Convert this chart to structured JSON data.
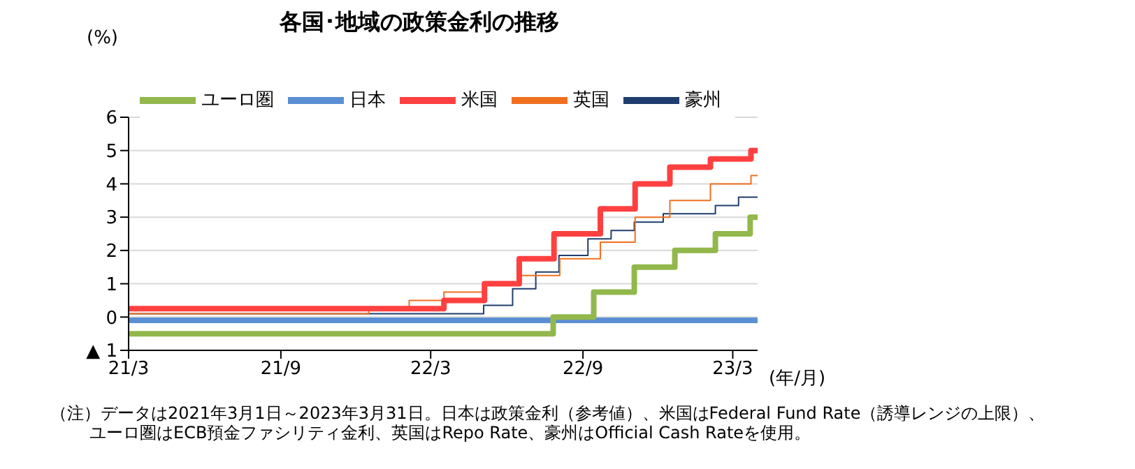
{
  "chart_data": {
    "type": "step",
    "title": "各国･地域の政策金利の推移",
    "ylabel": "(%)",
    "xlabel": "(年/月)",
    "xlim": [
      "2021-03-01",
      "2023-03-31"
    ],
    "xticks": [
      {
        "value": "2021-03-01",
        "label": "21/3"
      },
      {
        "value": "2021-09-01",
        "label": "21/9"
      },
      {
        "value": "2022-03-01",
        "label": "22/3"
      },
      {
        "value": "2022-09-01",
        "label": "22/9"
      },
      {
        "value": "2023-03-01",
        "label": "23/3"
      }
    ],
    "ylim": [
      -1,
      6
    ],
    "yticks": [
      {
        "value": -1,
        "label": "▲ 1"
      },
      0,
      1,
      2,
      3,
      4,
      5,
      6
    ],
    "grid": "y",
    "legend": "top left",
    "series": [
      {
        "name": "豪州",
        "color": "#1f3d6e",
        "x": [
          "2021-03-01",
          "2022-05-04",
          "2022-06-08",
          "2022-07-06",
          "2022-08-03",
          "2022-09-07",
          "2022-10-05",
          "2022-11-02",
          "2022-12-07",
          "2023-02-08",
          "2023-03-08",
          "2023-03-31"
        ],
        "values": [
          0.1,
          0.35,
          0.85,
          1.35,
          1.85,
          2.35,
          2.6,
          2.85,
          3.1,
          3.35,
          3.6,
          3.6
        ]
      },
      {
        "name": "英国",
        "color": "#f07020",
        "x": [
          "2021-03-01",
          "2021-12-16",
          "2022-02-03",
          "2022-03-17",
          "2022-05-05",
          "2022-06-16",
          "2022-08-04",
          "2022-09-22",
          "2022-11-03",
          "2022-12-15",
          "2023-02-02",
          "2023-03-23",
          "2023-03-31"
        ],
        "values": [
          0.1,
          0.25,
          0.5,
          0.75,
          1.0,
          1.25,
          1.75,
          2.25,
          3.0,
          3.5,
          4.0,
          4.25,
          4.25
        ]
      },
      {
        "name": "米国",
        "color": "#ff4040",
        "x": [
          "2021-03-01",
          "2022-03-17",
          "2022-05-05",
          "2022-06-16",
          "2022-07-28",
          "2022-09-22",
          "2022-11-03",
          "2022-12-15",
          "2023-02-02",
          "2023-03-23",
          "2023-03-31"
        ],
        "values": [
          0.25,
          0.5,
          1.0,
          1.75,
          2.5,
          3.25,
          4.0,
          4.5,
          4.75,
          5.0,
          5.0
        ]
      },
      {
        "name": "日本",
        "color": "#5b8fd4",
        "x": [
          "2021-03-01",
          "2023-03-31"
        ],
        "values": [
          -0.1,
          -0.1
        ]
      },
      {
        "name": "ユーロ圏",
        "color": "#92b84c",
        "x": [
          "2021-03-01",
          "2022-07-27",
          "2022-09-14",
          "2022-11-02",
          "2022-12-21",
          "2023-02-08",
          "2023-03-22",
          "2023-03-31"
        ],
        "values": [
          -0.5,
          0.0,
          0.75,
          1.5,
          2.0,
          2.5,
          3.0,
          3.0
        ]
      }
    ],
    "annotations": [
      "（注）データは2021年3月1日～2023年3月31日。日本は政策金利（参考値）、米国はFederal Fund Rate（誘導レンジの上限）、",
      "ユーロ圏はECB預金ファシリティ金利、英国はRepo Rate、豪州はOfficial Cash Rateを使用。"
    ]
  }
}
